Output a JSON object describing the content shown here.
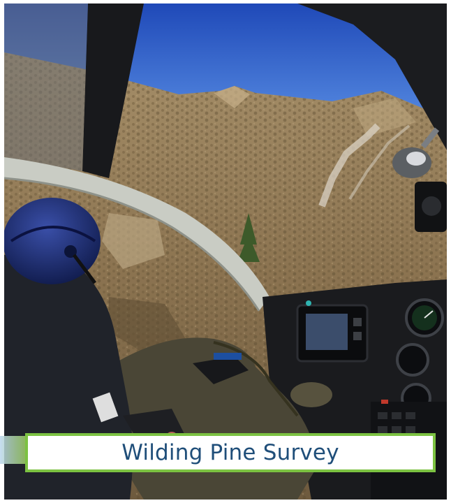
{
  "photo": {
    "scene": "helicopter-cockpit-view-over-hillside",
    "colors": {
      "sky": "#2f5fc8",
      "hillside": "#8d7652",
      "helmet": "#1a2a66",
      "frame_dark": "#1b1c1f",
      "accent_green": "#7cc242"
    }
  },
  "caption": {
    "text": "Wilding Pine Survey",
    "text_color": "#1f4e79",
    "border_color": "#7cc242"
  }
}
